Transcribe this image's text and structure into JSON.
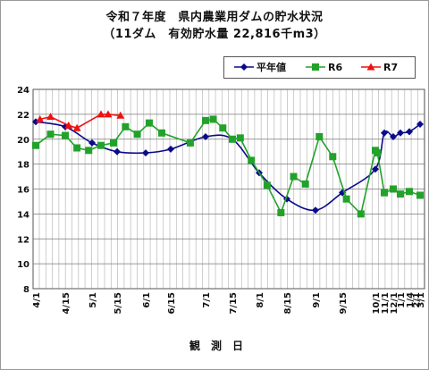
{
  "title_line1": "令和７年度　県内農業用ダムの貯水状況",
  "title_line2": "（11ダム　有効貯水量 22,816千m3）",
  "chart_data": {
    "type": "line",
    "xlabel": "観　測　日",
    "ylabel": "",
    "ylim": [
      8,
      24
    ],
    "yticks": [
      8,
      10,
      12,
      14,
      16,
      18,
      20,
      22,
      24
    ],
    "grid": true,
    "legend_position": "top-right",
    "x_tick_labels": [
      "4/1",
      "4/15",
      "5/1",
      "5/15",
      "6/1",
      "6/15",
      "7/1",
      "7/15",
      "8/1",
      "8/15",
      "9/1",
      "9/15",
      "10/1",
      "11/1",
      "12/1",
      "1/1",
      "1/4",
      "2/1",
      "3/1"
    ],
    "series": [
      {
        "name": "平年値",
        "color": "#0a0a8a",
        "marker": "diamond",
        "points": [
          {
            "x": "4/1",
            "y": 21.4
          },
          {
            "x": "4/15",
            "y": 21.0
          },
          {
            "x": "5/1",
            "y": 19.7
          },
          {
            "x": "5/15",
            "y": 19.0
          },
          {
            "x": "6/1",
            "y": 18.9
          },
          {
            "x": "6/15",
            "y": 19.2
          },
          {
            "x": "7/1",
            "y": 20.2
          },
          {
            "x": "7/15",
            "y": 20.0
          },
          {
            "x": "8/1",
            "y": 17.3
          },
          {
            "x": "8/15",
            "y": 15.2
          },
          {
            "x": "9/1",
            "y": 14.3
          },
          {
            "x": "9/15",
            "y": 15.7
          },
          {
            "x": "10/1",
            "y": 17.6
          },
          {
            "x": "11/1",
            "y": 20.5
          },
          {
            "x": "12/1",
            "y": 20.2
          },
          {
            "x": "1/1",
            "y": 20.5
          },
          {
            "x": "1/4",
            "y": 20.6
          },
          {
            "x": "3/1",
            "y": 21.2
          }
        ]
      },
      {
        "name": "R6",
        "color": "#22a22a",
        "marker": "square",
        "points": [
          {
            "x": "4/1",
            "y": 19.5
          },
          {
            "x": "4/8",
            "y": 20.4
          },
          {
            "x": "4/15",
            "y": 20.3
          },
          {
            "x": "4/22",
            "y": 19.3
          },
          {
            "x": "4/29",
            "y": 19.1
          },
          {
            "x": "5/6",
            "y": 19.5
          },
          {
            "x": "5/13",
            "y": 19.7
          },
          {
            "x": "5/20",
            "y": 21.0
          },
          {
            "x": "5/27",
            "y": 20.4
          },
          {
            "x": "6/3",
            "y": 21.3
          },
          {
            "x": "6/10",
            "y": 20.5
          },
          {
            "x": "6/24",
            "y": 19.7
          },
          {
            "x": "7/1",
            "y": 21.5
          },
          {
            "x": "7/5",
            "y": 21.6
          },
          {
            "x": "7/10",
            "y": 20.9
          },
          {
            "x": "7/15",
            "y": 20.0
          },
          {
            "x": "7/20",
            "y": 20.1
          },
          {
            "x": "7/27",
            "y": 18.3
          },
          {
            "x": "8/5",
            "y": 16.3
          },
          {
            "x": "8/12",
            "y": 14.1
          },
          {
            "x": "8/19",
            "y": 17.0
          },
          {
            "x": "8/26",
            "y": 16.4
          },
          {
            "x": "9/3",
            "y": 20.2
          },
          {
            "x": "9/10",
            "y": 18.6
          },
          {
            "x": "9/17",
            "y": 15.2
          },
          {
            "x": "9/24",
            "y": 14.0
          },
          {
            "x": "10/1",
            "y": 19.1
          },
          {
            "x": "10/8",
            "y": 18.9
          },
          {
            "x": "11/1",
            "y": 15.7
          },
          {
            "x": "12/1",
            "y": 16.0
          },
          {
            "x": "1/1",
            "y": 15.6
          },
          {
            "x": "1/4",
            "y": 15.8
          },
          {
            "x": "3/1",
            "y": 15.5
          }
        ]
      },
      {
        "name": "R7",
        "color": "#ee1111",
        "marker": "triangle",
        "points": [
          {
            "x": "4/3",
            "y": 21.6
          },
          {
            "x": "4/8",
            "y": 21.8
          },
          {
            "x": "4/17",
            "y": 21.1
          },
          {
            "x": "4/22",
            "y": 20.9
          },
          {
            "x": "5/6",
            "y": 22.0
          },
          {
            "x": "5/10",
            "y": 22.0
          },
          {
            "x": "5/17",
            "y": 21.9
          }
        ]
      }
    ]
  }
}
